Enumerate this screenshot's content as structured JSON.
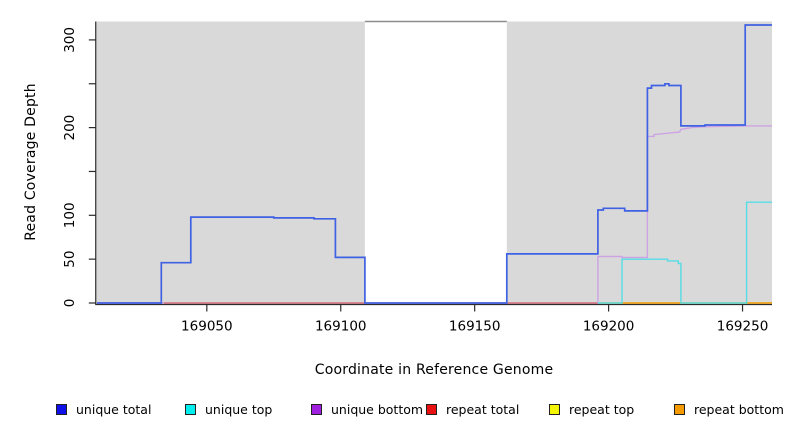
{
  "chart_data": {
    "type": "line",
    "subtype": "step-coverage",
    "title": "",
    "xlabel": "Coordinate in Reference Genome",
    "ylabel": "Read Coverage Depth",
    "xlim": [
      169009,
      169261
    ],
    "ylim": [
      0,
      321
    ],
    "grid": false,
    "xticks": [
      {
        "value": 169050,
        "label": "169050"
      },
      {
        "value": 169100,
        "label": "169100"
      },
      {
        "value": 169150,
        "label": "169150"
      },
      {
        "value": 169200,
        "label": "169200"
      },
      {
        "value": 169250,
        "label": "169250"
      }
    ],
    "yticks": [
      {
        "value": 0,
        "label": "0"
      },
      {
        "value": 50,
        "label": "50"
      },
      {
        "value": 100,
        "label": "100"
      },
      {
        "value": 150,
        "label": ""
      },
      {
        "value": 200,
        "label": "200"
      },
      {
        "value": 250,
        "label": ""
      },
      {
        "value": 300,
        "label": "300"
      }
    ],
    "shaded_bands": {
      "color": "#d9d9d9",
      "ranges": [
        [
          169009,
          169109
        ],
        [
          169162,
          169261
        ]
      ]
    },
    "gap_top_border": {
      "range": [
        169109,
        169162
      ],
      "color": "#8c8c8c"
    },
    "axis_color": "#2b2b2b",
    "series": [
      {
        "name": "repeat total",
        "color": "#d4596b",
        "width": 1.3,
        "segments": [
          [
            [
              169009,
              0
            ],
            [
              169197,
              0
            ]
          ]
        ]
      },
      {
        "name": "repeat top",
        "color": "#f5f500",
        "width": 1.3,
        "segments": []
      },
      {
        "name": "repeat bottom",
        "color": "#f59b00",
        "width": 1.6,
        "segments": [
          [
            [
              169197,
              0
            ],
            [
              169261,
              0
            ]
          ]
        ]
      },
      {
        "name": "unique bottom",
        "color": "#cda3e3",
        "width": 1.4,
        "segments": [
          [
            [
              169009,
              0
            ],
            [
              169034,
              0
            ]
          ],
          [
            [
              169196,
              0
            ],
            [
              169196,
              53
            ],
            [
              169205,
              53
            ],
            [
              169205,
              52
            ],
            [
              169214.5,
              52
            ],
            [
              169214.5,
              190
            ],
            [
              169217,
              190
            ],
            [
              169217,
              192
            ],
            [
              169226.5,
              195
            ],
            [
              169227,
              198
            ],
            [
              169231,
              200
            ],
            [
              169236,
              201
            ],
            [
              169251,
              202
            ],
            [
              169261,
              202
            ]
          ]
        ]
      },
      {
        "name": "unique top",
        "color": "#55dde6",
        "width": 1.4,
        "segments": [
          [
            [
              169196,
              0
            ],
            [
              169205,
              0
            ],
            [
              169205,
              50
            ],
            [
              169222,
              50
            ],
            [
              169222,
              48
            ],
            [
              169226,
              48
            ],
            [
              169226,
              45
            ],
            [
              169227,
              45
            ],
            [
              169227,
              0
            ],
            [
              169251.5,
              0
            ],
            [
              169251.5,
              115
            ],
            [
              169261,
              115
            ]
          ]
        ]
      },
      {
        "name": "unique total",
        "color": "#3f61e3",
        "width": 1.7,
        "segments": [
          [
            [
              169009,
              0
            ],
            [
              169033,
              0
            ],
            [
              169033,
              46
            ],
            [
              169044,
              46
            ],
            [
              169044,
              98
            ],
            [
              169075,
              98
            ],
            [
              169075,
              97
            ],
            [
              169090,
              97
            ],
            [
              169090,
              96
            ],
            [
              169098,
              96
            ],
            [
              169098,
              52
            ],
            [
              169109,
              52
            ],
            [
              169109,
              0
            ],
            [
              169162,
              0
            ],
            [
              169162,
              56
            ],
            [
              169196,
              56
            ],
            [
              169196,
              106
            ],
            [
              169198,
              106
            ],
            [
              169198,
              108
            ],
            [
              169206,
              108
            ],
            [
              169206,
              105
            ],
            [
              169214.5,
              105
            ],
            [
              169214.5,
              245
            ],
            [
              169216,
              245
            ],
            [
              169216,
              248
            ],
            [
              169221,
              248
            ],
            [
              169221,
              250
            ],
            [
              169222.5,
              250
            ],
            [
              169222.5,
              248
            ],
            [
              169227,
              248
            ],
            [
              169227,
              202
            ],
            [
              169236,
              202
            ],
            [
              169236,
              203
            ],
            [
              169251,
              203
            ],
            [
              169251,
              317
            ],
            [
              169261,
              317
            ]
          ]
        ]
      }
    ],
    "legend": {
      "position": "bottom",
      "entries": [
        {
          "label": "unique total",
          "color": "#1010e8"
        },
        {
          "label": "unique top",
          "color": "#00eeee"
        },
        {
          "label": "unique bottom",
          "color": "#a020e0"
        },
        {
          "label": "repeat total",
          "color": "#e81010"
        },
        {
          "label": "repeat top",
          "color": "#f5f500"
        },
        {
          "label": "repeat bottom",
          "color": "#f59b00"
        }
      ]
    }
  }
}
